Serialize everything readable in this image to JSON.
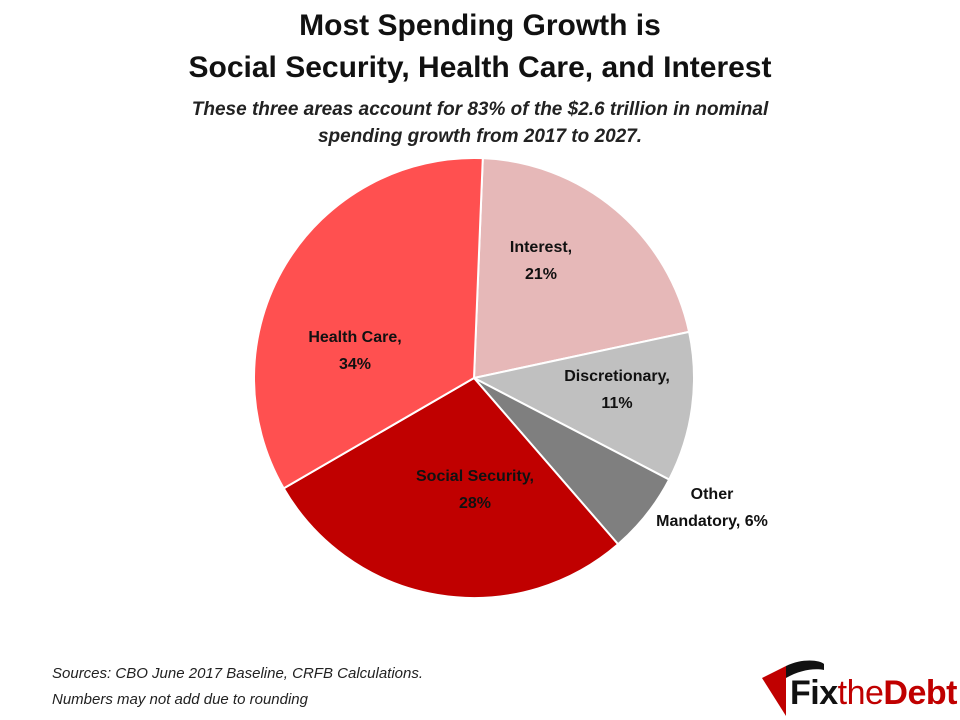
{
  "header": {
    "title_line1": "Most Spending Growth is",
    "title_line2": "Social Security, Health Care, and Interest",
    "subtitle_line1": "These three areas account for 83% of the $2.6 trillion in nominal",
    "subtitle_line2": "spending growth from 2017 to 2027."
  },
  "chart_data": {
    "type": "pie",
    "title": "Most Spending Growth is Social Security, Health Care, and Interest",
    "slices": [
      {
        "label": "Interest,",
        "value_label": "21%",
        "value": 21,
        "color": "#e6b8b8"
      },
      {
        "label": "Discretionary,",
        "value_label": "11%",
        "value": 11,
        "color": "#c0c0c0"
      },
      {
        "label": "Other",
        "value_label": "Mandatory,  6%",
        "value": 6,
        "color": "#7f7f7f"
      },
      {
        "label": "Social Security,",
        "value_label": "28%",
        "value": 28,
        "color": "#c00000"
      },
      {
        "label": "Health Care,",
        "value_label": "34%",
        "value": 34,
        "color": "#ff5050"
      }
    ]
  },
  "footer": {
    "source_line1": "Sources: CBO June 2017 Baseline, CRFB Calculations.",
    "source_line2": "Numbers may not add due to rounding",
    "logo_fix": "Fix",
    "logo_the": "the",
    "logo_debt": "Debt"
  }
}
